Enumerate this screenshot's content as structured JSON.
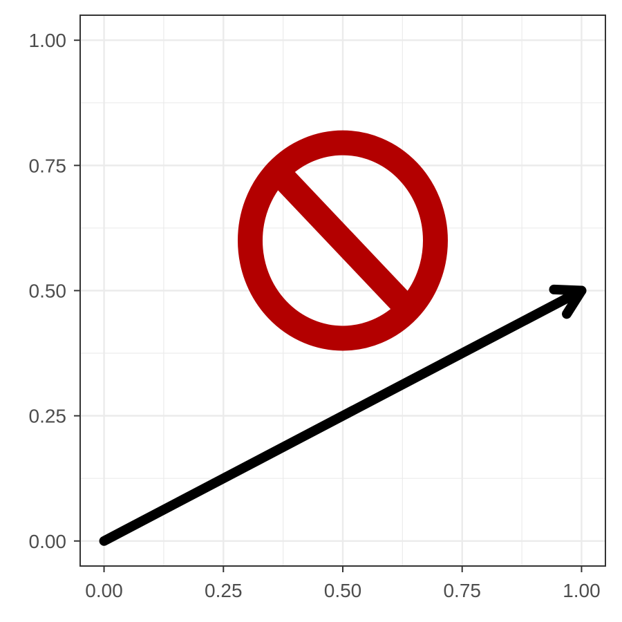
{
  "chart_data": {
    "type": "scatter",
    "title": "",
    "xlabel": "",
    "ylabel": "",
    "xlim": [
      -0.05,
      1.05
    ],
    "ylim": [
      -0.05,
      1.05
    ],
    "x_ticks": [
      0,
      0.25,
      0.5,
      0.75,
      1
    ],
    "x_tick_labels": [
      "0.00",
      "0.25",
      "0.50",
      "0.75",
      "1.00"
    ],
    "y_ticks": [
      0,
      0.25,
      0.5,
      0.75,
      1
    ],
    "y_tick_labels": [
      "0.00",
      "0.25",
      "0.50",
      "0.75",
      "1.00"
    ],
    "minor_ticks": [
      0.125,
      0.375,
      0.625,
      0.875
    ],
    "grid": true,
    "arrow": {
      "x_start": 0,
      "y_start": 0,
      "x_end": 1,
      "y_end": 0.5
    },
    "no_symbol": {
      "center_x": 0.5,
      "center_y": 0.6,
      "radius_x": 0.22,
      "radius_y": 0.22,
      "icon": "prohibition-sign-icon"
    }
  },
  "colors": {
    "background": "#ffffff",
    "grid": "#ebebeb",
    "panel_border": "#333333",
    "tick_text": "#4d4d4d",
    "arrow": "#000000",
    "symbol": "#b30000"
  }
}
